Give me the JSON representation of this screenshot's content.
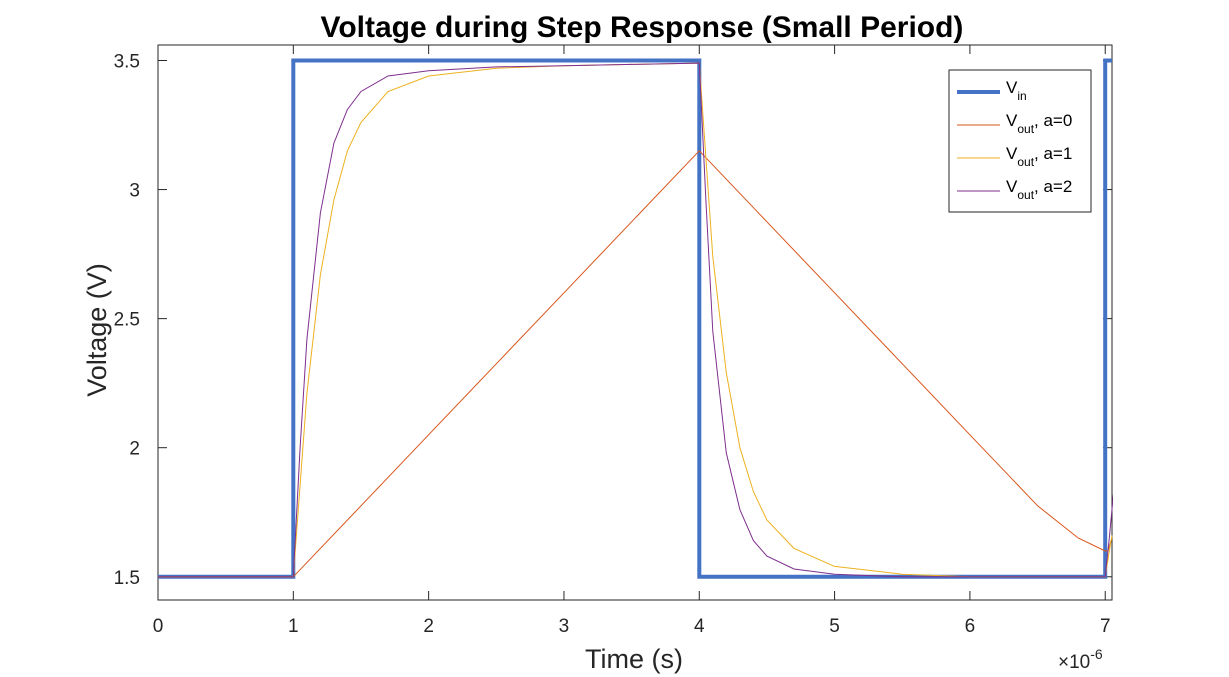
{
  "chart_data": {
    "type": "line",
    "title": "Voltage during Step Response (Small Period)",
    "xlabel": "Time (s)",
    "ylabel": "Voltage (V)",
    "x_exponent": {
      "base": "×10",
      "power": "-6"
    },
    "xlim": [
      0,
      7.05
    ],
    "ylim": [
      1.41,
      3.56
    ],
    "xticks": [
      0,
      1,
      2,
      3,
      4,
      5,
      6,
      7
    ],
    "xtick_labels": [
      "0",
      "1",
      "2",
      "3",
      "4",
      "5",
      "6",
      "7"
    ],
    "yticks": [
      1.5,
      2,
      2.5,
      3,
      3.5
    ],
    "ytick_labels": [
      "1.5",
      "2",
      "2.5",
      "3",
      "3.5"
    ],
    "grid": false,
    "legend_position": "top-right",
    "series": [
      {
        "legend_main": "V",
        "legend_sub": "in",
        "legend_rest": "",
        "color": "#4472C4",
        "line_width": 4,
        "x": [
          0,
          1,
          1,
          4,
          4,
          7,
          7,
          7.05
        ],
        "y": [
          1.5,
          1.5,
          3.5,
          3.5,
          1.5,
          1.5,
          3.5,
          3.5
        ]
      },
      {
        "legend_main": "V",
        "legend_sub": "out",
        "legend_rest": ", a=0",
        "color": "#D9541A",
        "line_width": 1,
        "x": [
          0,
          1,
          1.5,
          2,
          2.5,
          3,
          3.5,
          4,
          4.5,
          5,
          5.5,
          6,
          6.5,
          6.8,
          7,
          7.02,
          7.05
        ],
        "y": [
          1.5,
          1.5,
          1.775,
          2.05,
          2.325,
          2.6,
          2.875,
          3.15,
          2.875,
          2.6,
          2.325,
          2.05,
          1.775,
          1.65,
          1.6,
          1.6,
          1.65
        ]
      },
      {
        "legend_main": "V",
        "legend_sub": "out",
        "legend_rest": ", a=1",
        "color": "#EDB120",
        "line_width": 1,
        "x": [
          0,
          1,
          1.1,
          1.2,
          1.3,
          1.4,
          1.5,
          1.7,
          2,
          2.5,
          3,
          3.5,
          4,
          4.1,
          4.2,
          4.3,
          4.4,
          4.5,
          4.7,
          5,
          5.5,
          6,
          6.5,
          7,
          7.03,
          7.05
        ],
        "y": [
          1.5,
          1.5,
          2.21,
          2.67,
          2.96,
          3.15,
          3.26,
          3.38,
          3.44,
          3.47,
          3.48,
          3.485,
          3.49,
          2.74,
          2.29,
          2.0,
          1.83,
          1.72,
          1.61,
          1.54,
          1.51,
          1.5,
          1.5,
          1.5,
          1.6,
          1.66
        ]
      },
      {
        "legend_main": "V",
        "legend_sub": "out",
        "legend_rest": ", a=2",
        "color": "#7E2F8E",
        "line_width": 1,
        "x": [
          0,
          1,
          1.05,
          1.1,
          1.2,
          1.3,
          1.4,
          1.5,
          1.7,
          2,
          2.5,
          3,
          3.5,
          4,
          4.05,
          4.1,
          4.2,
          4.3,
          4.4,
          4.5,
          4.7,
          5,
          5.5,
          6,
          6.5,
          7,
          7.03,
          7.06
        ],
        "y": [
          1.5,
          1.5,
          2.0,
          2.42,
          2.91,
          3.18,
          3.31,
          3.38,
          3.44,
          3.46,
          3.475,
          3.48,
          3.485,
          3.49,
          2.95,
          2.45,
          1.98,
          1.76,
          1.64,
          1.58,
          1.53,
          1.51,
          1.5,
          1.5,
          1.5,
          1.5,
          1.65,
          1.82
        ]
      }
    ]
  }
}
